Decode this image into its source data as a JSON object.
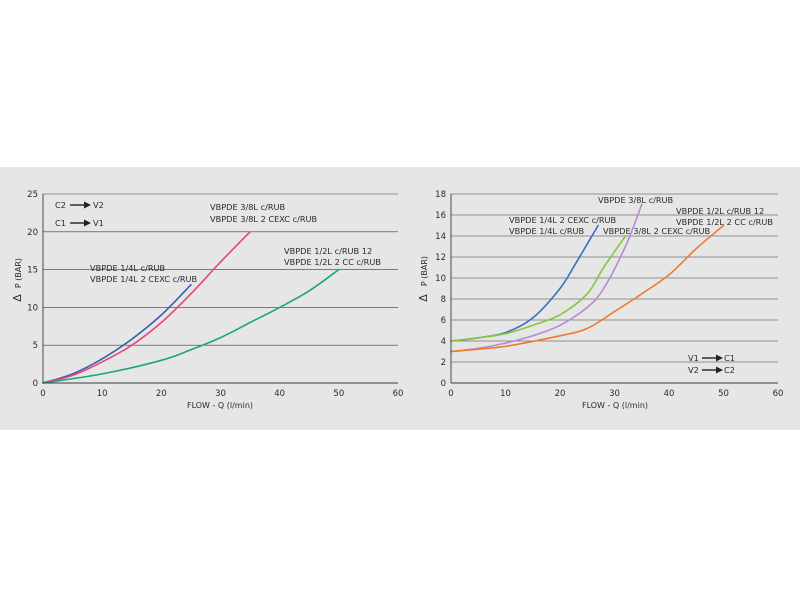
{
  "chart_data": [
    {
      "type": "line",
      "xlabel": "FLOW - Q (l/min)",
      "ylabel_delta": "Δ",
      "ylabel": "P (BAR)",
      "xlim": [
        0,
        60
      ],
      "ylim": [
        0,
        25
      ],
      "xticks": [
        "0",
        "10",
        "20",
        "30",
        "40",
        "50",
        "60"
      ],
      "yticks": [
        "0",
        "5",
        "10",
        "15",
        "20",
        "25"
      ],
      "direction_legend": [
        {
          "from": "C2",
          "to": "V2"
        },
        {
          "from": "C1",
          "to": "V1"
        }
      ],
      "series": [
        {
          "name": "VBPDE 1/4L c/RUB",
          "color": "#3a5fb0",
          "x": [
            0,
            5,
            10,
            15,
            20,
            25
          ],
          "y": [
            0,
            1.2,
            3.2,
            5.8,
            9,
            13
          ]
        },
        {
          "name": "VBPDE 3/8L c/RUB",
          "color": "#e8457a",
          "x": [
            0,
            5,
            10,
            15,
            20,
            25,
            30,
            35
          ],
          "y": [
            0,
            1,
            2.8,
            5,
            8,
            11.8,
            16,
            20
          ]
        },
        {
          "name": "VBPDE 1/2L c/RUB 12",
          "color": "#1aa67a",
          "x": [
            0,
            10,
            20,
            25,
            30,
            35,
            40,
            45,
            50
          ],
          "y": [
            0,
            1.2,
            3,
            4.4,
            6,
            8,
            10,
            12.2,
            15
          ]
        }
      ],
      "annotations": [
        {
          "lines": [
            "VBPDE 3/8L c/RUB",
            "VBPDE 3/8L 2 CEXC c/RUB"
          ]
        },
        {
          "lines": [
            "VBPDE 1/2L c/RUB 12",
            "VBPDE 1/2L 2 CC c/RUB"
          ]
        },
        {
          "lines": [
            "VBPDE 1/4L c/RUB",
            "VBPDE 1/4L 2 CEXC c/RUB"
          ]
        }
      ]
    },
    {
      "type": "line",
      "xlabel": "FLOW - Q (l/min)",
      "ylabel_delta": "Δ",
      "ylabel": "P (BAR)",
      "xlim": [
        0,
        60
      ],
      "ylim": [
        0,
        18
      ],
      "xticks": [
        "0",
        "10",
        "20",
        "30",
        "40",
        "50",
        "60"
      ],
      "yticks": [
        "0",
        "2",
        "4",
        "6",
        "8",
        "10",
        "12",
        "14",
        "16",
        "18"
      ],
      "direction_legend": [
        {
          "from": "V1",
          "to": "C1"
        },
        {
          "from": "V2",
          "to": "C2"
        }
      ],
      "series": [
        {
          "name": "VBPDE 1/4L c/RUB",
          "color": "#3a6fc4",
          "x": [
            0,
            5,
            10,
            15,
            20,
            23,
            27
          ],
          "y": [
            4,
            4.3,
            4.8,
            6.2,
            9,
            11.5,
            15
          ]
        },
        {
          "name": "VBPDE 1/4L 2 CEXC c/RUB",
          "color": "#8cc43c",
          "x": [
            0,
            5,
            10,
            15,
            20,
            25,
            28,
            32
          ],
          "y": [
            4,
            4.3,
            4.7,
            5.5,
            6.5,
            8.5,
            11,
            14
          ]
        },
        {
          "name": "VBPDE 3/8L c/RUB",
          "color": "#b48bd6",
          "x": [
            0,
            5,
            10,
            15,
            20,
            25,
            28,
            32,
            35
          ],
          "y": [
            3,
            3.3,
            3.8,
            4.5,
            5.5,
            7.2,
            9,
            13,
            17
          ]
        },
        {
          "name": "VBPDE 1/2L c/RUB 12",
          "color": "#f07a35",
          "x": [
            0,
            10,
            20,
            25,
            30,
            35,
            40,
            45,
            50
          ],
          "y": [
            3,
            3.5,
            4.5,
            5.2,
            6.8,
            8.5,
            10.3,
            12.8,
            15
          ]
        }
      ],
      "annotations": [
        {
          "lines": [
            "VBPDE 3/8L c/RUB"
          ]
        },
        {
          "lines": [
            "VBPDE 1/2L c/RUB 12",
            "VBPDE 1/2L 2 CC c/RUB"
          ]
        },
        {
          "lines": [
            "VBPDE 1/4L 2 CEXC c/RUB",
            "VBPDE 1/4L c/RUB"
          ]
        },
        {
          "lines": [
            "VBPDE 3/8L 2 CEXC c/RUB"
          ]
        }
      ]
    }
  ]
}
